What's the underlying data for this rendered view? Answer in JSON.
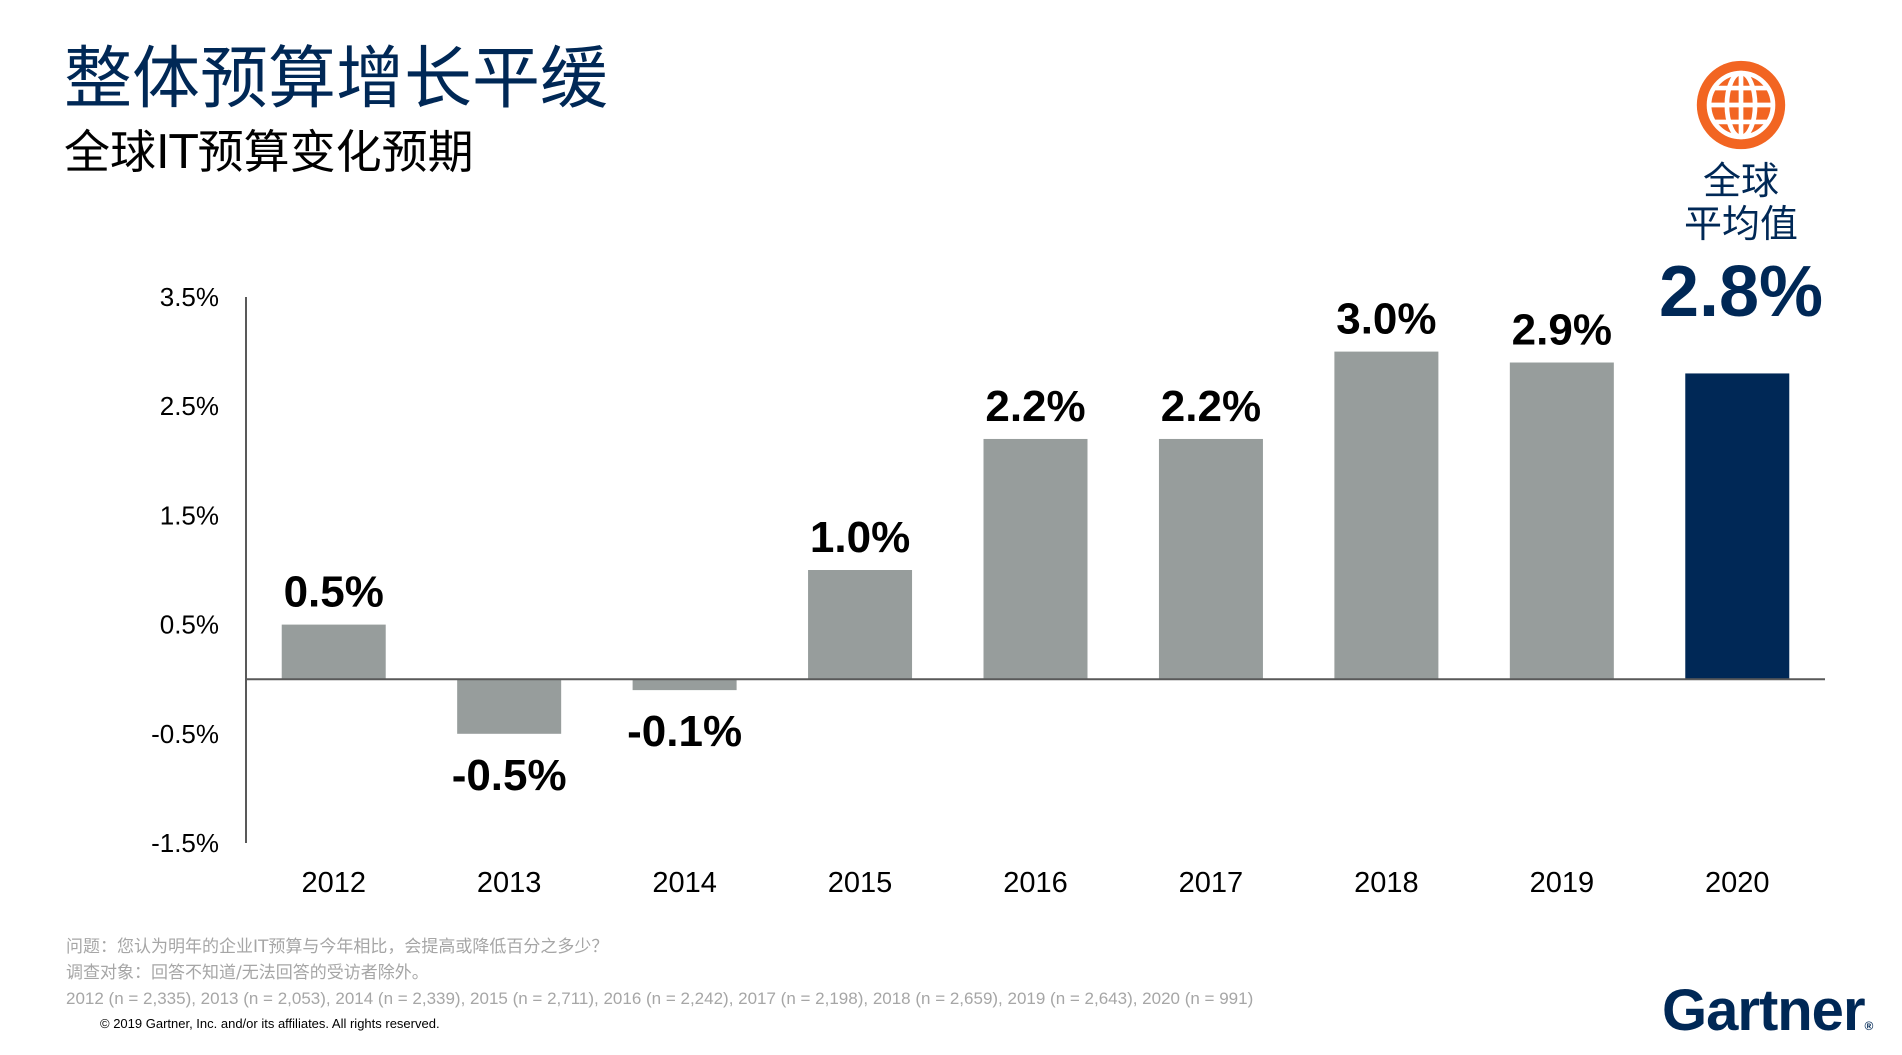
{
  "title": "整体预算增长平缓",
  "subtitle": "全球IT预算变化预期",
  "global_badge": {
    "icon": "globe-icon",
    "label_line1": "全球",
    "label_line2": "平均值",
    "value": "2.8%"
  },
  "colors": {
    "title": "#002856",
    "bar_default": "#979d9c",
    "bar_highlight": "#002856",
    "globe": "#f26522"
  },
  "chart_data": {
    "type": "bar",
    "categories": [
      "2012",
      "2013",
      "2014",
      "2015",
      "2016",
      "2017",
      "2018",
      "2019",
      "2020"
    ],
    "values": [
      0.5,
      -0.5,
      -0.1,
      1.0,
      2.2,
      2.2,
      3.0,
      2.9,
      2.8
    ],
    "data_labels": [
      "0.5%",
      "-0.5%",
      "-0.1%",
      "1.0%",
      "2.2%",
      "2.2%",
      "3.0%",
      "2.9%",
      ""
    ],
    "highlight_category": "2020",
    "y_ticks": [
      3.5,
      2.5,
      1.5,
      0.5,
      -0.5,
      -1.5
    ],
    "y_tick_labels": [
      "3.5%",
      "2.5%",
      "1.5%",
      "0.5%",
      "-0.5%",
      "-1.5%"
    ],
    "ylim": [
      -1.5,
      3.5
    ],
    "grid": false
  },
  "footnotes": {
    "question": "问题：您认为明年的企业IT预算与今年相比，会提高或降低百分之多少？",
    "sample": "调查对象：回答不知道/无法回答的受访者除外。",
    "n_counts": "2012 (n = 2,335), 2013 (n = 2,053), 2014 (n = 2,339), 2015 (n = 2,711), 2016 (n = 2,242), 2017 (n = 2,198), 2018 (n = 2,659), 2019 (n = 2,643), 2020 (n = 991)"
  },
  "copyright": "© 2019 Gartner, Inc. and/or its affiliates. All rights reserved.",
  "logo": {
    "text": "Gartner",
    "mark": "®"
  }
}
